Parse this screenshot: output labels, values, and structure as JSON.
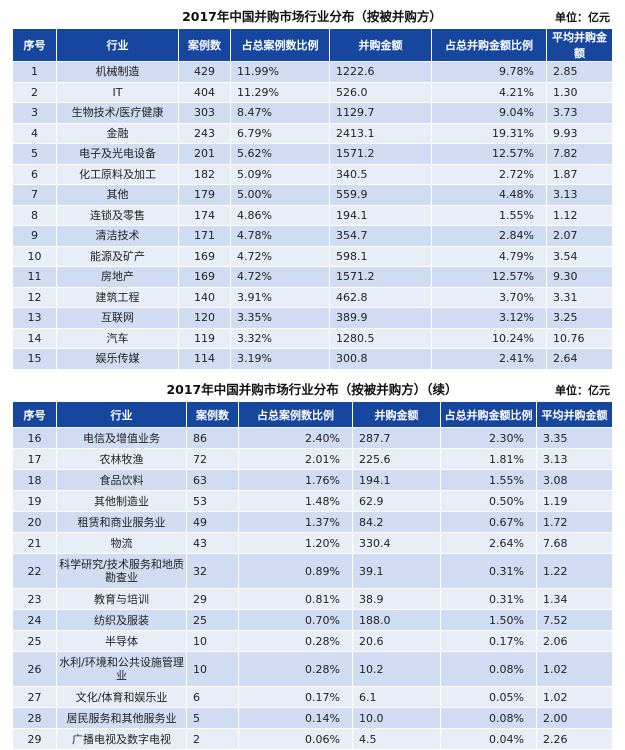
{
  "table1": {
    "title": "2017年中国并购市场行业分布（按被并购方）",
    "unit": "单位：亿元",
    "headers": [
      "序号",
      "行业",
      "案例数",
      "占总案例数比例",
      "并购金额",
      "占总并购金额比例",
      "平均并购金额"
    ],
    "rows": [
      [
        "1",
        "机械制造",
        "429",
        "11.99%",
        "1222.6",
        "9.78%",
        "2.85"
      ],
      [
        "2",
        "IT",
        "404",
        "11.29%",
        "526.0",
        "4.21%",
        "1.30"
      ],
      [
        "3",
        "生物技术/医疗健康",
        "303",
        "8.47%",
        "1129.7",
        "9.04%",
        "3.73"
      ],
      [
        "4",
        "金融",
        "243",
        "6.79%",
        "2413.1",
        "19.31%",
        "9.93"
      ],
      [
        "5",
        "电子及光电设备",
        "201",
        "5.62%",
        "1571.2",
        "12.57%",
        "7.82"
      ],
      [
        "6",
        "化工原料及加工",
        "182",
        "5.09%",
        "340.5",
        "2.72%",
        "1.87"
      ],
      [
        "7",
        "其他",
        "179",
        "5.00%",
        "559.9",
        "4.48%",
        "3.13"
      ],
      [
        "8",
        "连锁及零售",
        "174",
        "4.86%",
        "194.1",
        "1.55%",
        "1.12"
      ],
      [
        "9",
        "清洁技术",
        "171",
        "4.78%",
        "354.7",
        "2.84%",
        "2.07"
      ],
      [
        "10",
        "能源及矿产",
        "169",
        "4.72%",
        "598.1",
        "4.79%",
        "3.54"
      ],
      [
        "11",
        "房地产",
        "169",
        "4.72%",
        "1571.2",
        "12.57%",
        "9.30"
      ],
      [
        "12",
        "建筑工程",
        "140",
        "3.91%",
        "462.8",
        "3.70%",
        "3.31"
      ],
      [
        "13",
        "互联网",
        "120",
        "3.35%",
        "389.9",
        "3.12%",
        "3.25"
      ],
      [
        "14",
        "汽车",
        "119",
        "3.32%",
        "1280.5",
        "10.24%",
        "10.76"
      ],
      [
        "15",
        "娱乐传媒",
        "114",
        "3.19%",
        "300.8",
        "2.41%",
        "2.64"
      ]
    ]
  },
  "table2": {
    "title": "2017年中国并购市场行业分布（按被并购方）（续）",
    "unit": "单位：亿元",
    "headers": [
      "序号",
      "行业",
      "案例数",
      "占总案例数比例",
      "并购金额",
      "占总并购金额比例",
      "平均并购金额"
    ],
    "rows": [
      [
        "16",
        "电信及增值业务",
        "86",
        "2.40%",
        "287.7",
        "2.30%",
        "3.35"
      ],
      [
        "17",
        "农林牧渔",
        "72",
        "2.01%",
        "225.6",
        "1.81%",
        "3.13"
      ],
      [
        "18",
        "食品饮料",
        "63",
        "1.76%",
        "194.1",
        "1.55%",
        "3.08"
      ],
      [
        "19",
        "其他制造业",
        "53",
        "1.48%",
        "62.9",
        "0.50%",
        "1.19"
      ],
      [
        "20",
        "租赁和商业服务业",
        "49",
        "1.37%",
        "84.2",
        "0.67%",
        "1.72"
      ],
      [
        "21",
        "物流",
        "43",
        "1.20%",
        "330.4",
        "2.64%",
        "7.68"
      ],
      [
        "22",
        "科学研究/技术服务和地质勘查业",
        "32",
        "0.89%",
        "39.1",
        "0.31%",
        "1.22"
      ],
      [
        "23",
        "教育与培训",
        "29",
        "0.81%",
        "38.9",
        "0.31%",
        "1.34"
      ],
      [
        "24",
        "纺织及服装",
        "25",
        "0.70%",
        "188.0",
        "1.50%",
        "7.52"
      ],
      [
        "25",
        "半导体",
        "10",
        "0.28%",
        "20.6",
        "0.17%",
        "2.06"
      ],
      [
        "26",
        "水利/环境和公共设施管理业",
        "10",
        "0.28%",
        "10.2",
        "0.08%",
        "1.02"
      ],
      [
        "27",
        "文化/体育和娱乐业",
        "6",
        "0.17%",
        "6.1",
        "0.05%",
        "1.02"
      ],
      [
        "28",
        "居民服务和其他服务业",
        "5",
        "0.14%",
        "10.0",
        "0.08%",
        "2.00"
      ],
      [
        "29",
        "广播电视及数字电视",
        "2",
        "0.06%",
        "4.5",
        "0.04%",
        "2.26"
      ]
    ]
  }
}
